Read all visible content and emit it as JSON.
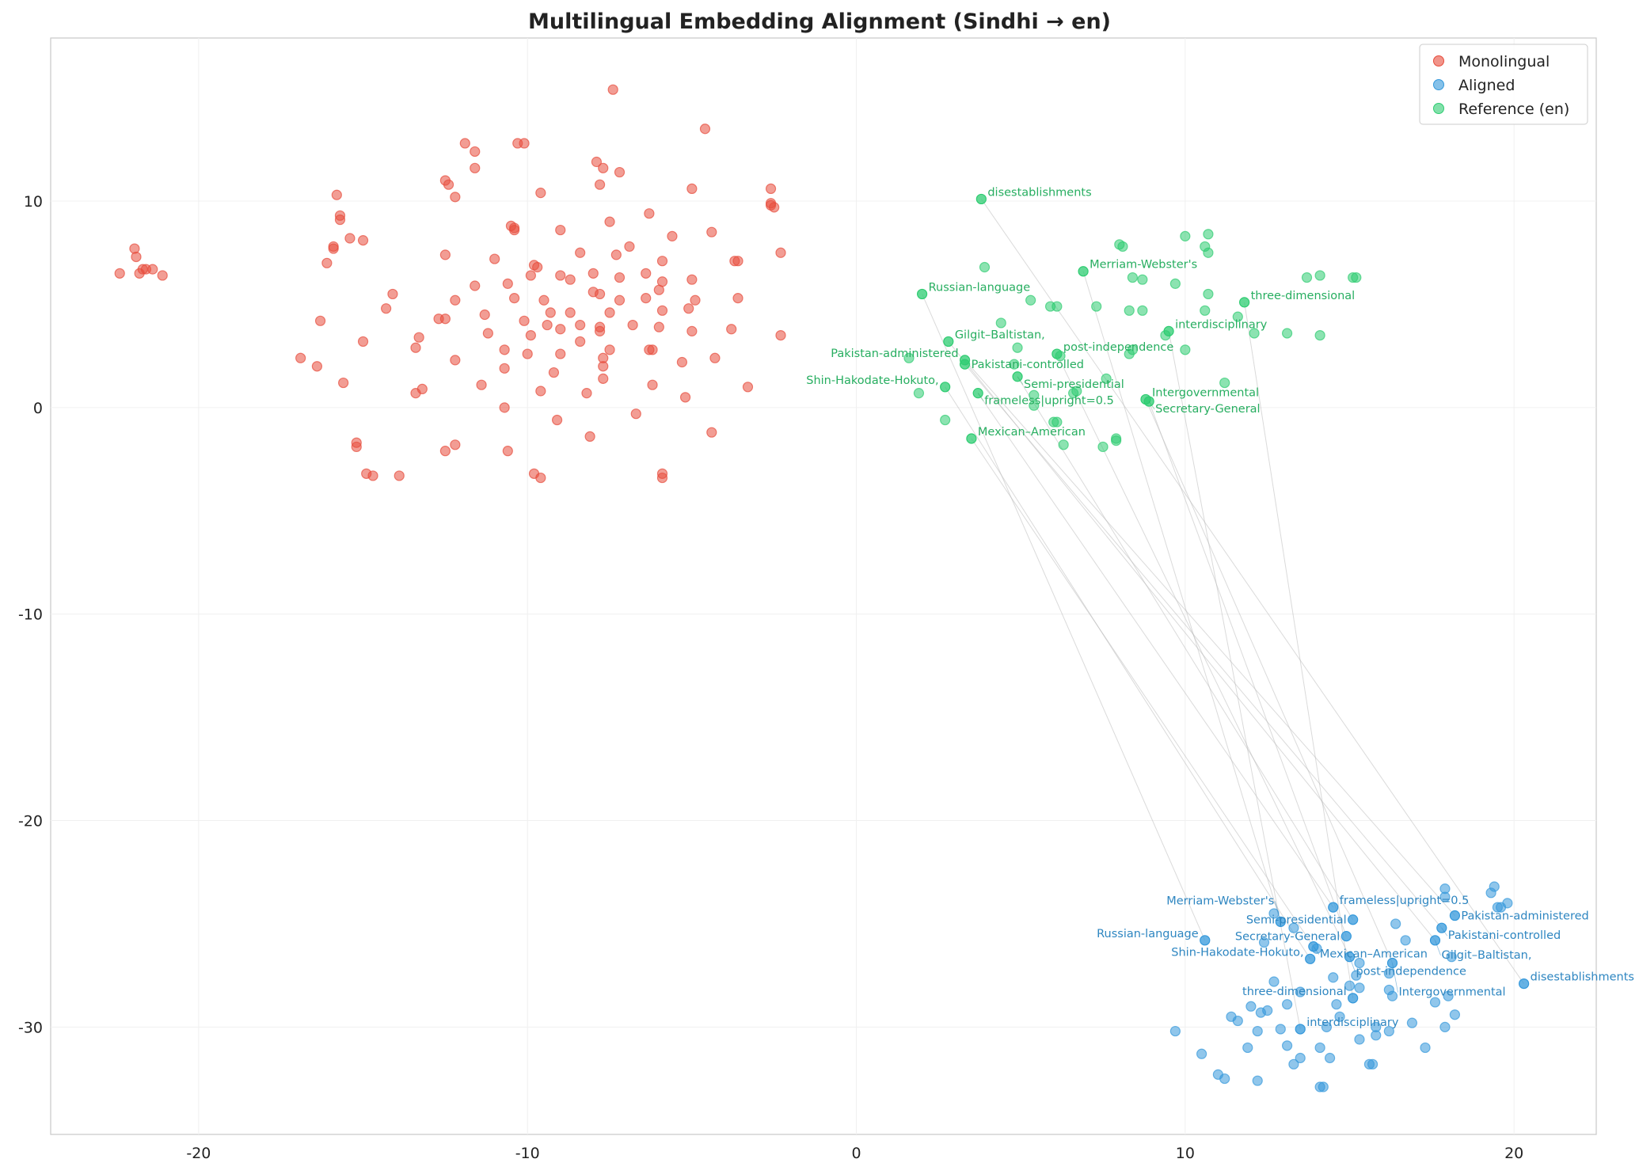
{
  "chart_data": {
    "type": "scatter",
    "title": "Multilingual Embedding Alignment (Sindhi → en)",
    "xlabel": "",
    "ylabel": "",
    "xlim": [
      -24.5,
      22.5
    ],
    "ylim": [
      -35.2,
      17.9
    ],
    "xticks": [
      -20,
      -10,
      0,
      10,
      20
    ],
    "yticks": [
      10,
      0,
      -10,
      -20,
      -30
    ],
    "grid": true,
    "legend_position": "top-right",
    "colors": {
      "Monolingual": "#e74c3c",
      "Aligned": "#3498db",
      "Reference (en)": "#2ecc71",
      "ref_label": "#27ae60",
      "aligned_label": "#2e86c1",
      "line": "#bbbbbb"
    },
    "series": [
      {
        "name": "Monolingual",
        "points": [
          [
            -22.4,
            6.5
          ],
          [
            -21.95,
            7.7
          ],
          [
            -21.9,
            7.3
          ],
          [
            -21.8,
            6.5
          ],
          [
            -21.7,
            6.7
          ],
          [
            -21.6,
            6.7
          ],
          [
            -21.4,
            6.7
          ],
          [
            -21.1,
            6.4
          ],
          [
            -16.9,
            2.4
          ],
          [
            -16.4,
            2.0
          ],
          [
            -16.3,
            4.2
          ],
          [
            -16.1,
            7.0
          ],
          [
            -15.9,
            7.7
          ],
          [
            -15.9,
            7.8
          ],
          [
            -15.8,
            10.3
          ],
          [
            -15.7,
            9.3
          ],
          [
            -15.7,
            9.1
          ],
          [
            -15.6,
            1.2
          ],
          [
            -15.4,
            8.2
          ],
          [
            -15.2,
            -1.7
          ],
          [
            -15.2,
            -1.9
          ],
          [
            -15.0,
            8.1
          ],
          [
            -15.0,
            3.2
          ],
          [
            -14.9,
            -3.2
          ],
          [
            -14.7,
            -3.3
          ],
          [
            -14.3,
            4.8
          ],
          [
            -14.1,
            5.5
          ],
          [
            -13.9,
            -3.3
          ],
          [
            -13.4,
            0.7
          ],
          [
            -13.4,
            2.9
          ],
          [
            -13.3,
            3.4
          ],
          [
            -13.2,
            0.9
          ],
          [
            -12.7,
            4.3
          ],
          [
            -12.5,
            7.4
          ],
          [
            -12.5,
            4.3
          ],
          [
            -12.5,
            11.0
          ],
          [
            -12.4,
            10.8
          ],
          [
            -12.2,
            10.2
          ],
          [
            -12.2,
            5.2
          ],
          [
            -12.2,
            2.3
          ],
          [
            -12.5,
            -2.1
          ],
          [
            -12.2,
            -1.8
          ],
          [
            -11.9,
            12.8
          ],
          [
            -11.6,
            12.4
          ],
          [
            -11.6,
            11.6
          ],
          [
            -11.6,
            5.9
          ],
          [
            -11.4,
            1.1
          ],
          [
            -11.3,
            4.5
          ],
          [
            -11.2,
            3.6
          ],
          [
            -11.0,
            7.2
          ],
          [
            -10.7,
            2.8
          ],
          [
            -10.7,
            1.9
          ],
          [
            -10.7,
            0.0
          ],
          [
            -10.6,
            -2.1
          ],
          [
            -10.6,
            6.0
          ],
          [
            -10.5,
            8.8
          ],
          [
            -10.4,
            8.6
          ],
          [
            -10.4,
            8.7
          ],
          [
            -10.4,
            5.3
          ],
          [
            -10.3,
            12.8
          ],
          [
            -10.1,
            12.8
          ],
          [
            -10.1,
            4.2
          ],
          [
            -10.0,
            2.6
          ],
          [
            -9.9,
            3.5
          ],
          [
            -9.9,
            6.4
          ],
          [
            -9.8,
            6.9
          ],
          [
            -9.7,
            6.8
          ],
          [
            -9.8,
            -3.2
          ],
          [
            -9.6,
            -3.4
          ],
          [
            -9.6,
            10.4
          ],
          [
            -9.6,
            0.8
          ],
          [
            -9.5,
            5.2
          ],
          [
            -9.4,
            4.0
          ],
          [
            -9.3,
            4.6
          ],
          [
            -9.2,
            1.7
          ],
          [
            -9.1,
            -0.6
          ],
          [
            -9.0,
            3.8
          ],
          [
            -9.0,
            6.4
          ],
          [
            -9.0,
            2.6
          ],
          [
            -9.0,
            8.6
          ],
          [
            -8.7,
            6.2
          ],
          [
            -8.7,
            4.6
          ],
          [
            -8.4,
            7.5
          ],
          [
            -8.4,
            4.0
          ],
          [
            -8.4,
            3.2
          ],
          [
            -8.2,
            0.7
          ],
          [
            -8.1,
            -1.4
          ],
          [
            -8.0,
            5.6
          ],
          [
            -8.0,
            6.5
          ],
          [
            -7.9,
            11.9
          ],
          [
            -7.8,
            3.9
          ],
          [
            -7.8,
            3.7
          ],
          [
            -7.8,
            10.8
          ],
          [
            -7.8,
            5.5
          ],
          [
            -7.7,
            2.4
          ],
          [
            -7.7,
            2.0
          ],
          [
            -7.7,
            1.4
          ],
          [
            -7.7,
            11.6
          ],
          [
            -7.5,
            2.8
          ],
          [
            -7.5,
            4.6
          ],
          [
            -7.5,
            9.0
          ],
          [
            -7.4,
            15.4
          ],
          [
            -7.3,
            7.4
          ],
          [
            -7.2,
            11.4
          ],
          [
            -7.2,
            6.3
          ],
          [
            -7.2,
            5.2
          ],
          [
            -6.9,
            7.8
          ],
          [
            -6.8,
            4.0
          ],
          [
            -6.7,
            -0.3
          ],
          [
            -6.4,
            6.5
          ],
          [
            -6.4,
            5.3
          ],
          [
            -6.3,
            9.4
          ],
          [
            -6.2,
            1.1
          ],
          [
            -6.3,
            2.8
          ],
          [
            -6.2,
            2.8
          ],
          [
            -6.0,
            5.7
          ],
          [
            -6.0,
            3.9
          ],
          [
            -5.9,
            6.1
          ],
          [
            -5.9,
            4.7
          ],
          [
            -5.9,
            7.1
          ],
          [
            -5.9,
            -3.2
          ],
          [
            -5.9,
            -3.4
          ],
          [
            -5.6,
            8.3
          ],
          [
            -5.3,
            2.2
          ],
          [
            -5.2,
            0.5
          ],
          [
            -5.1,
            4.8
          ],
          [
            -5.0,
            3.7
          ],
          [
            -5.0,
            10.6
          ],
          [
            -5.0,
            6.2
          ],
          [
            -4.9,
            5.2
          ],
          [
            -4.6,
            13.5
          ],
          [
            -4.4,
            8.5
          ],
          [
            -4.4,
            -1.2
          ],
          [
            -4.3,
            2.4
          ],
          [
            -3.8,
            3.8
          ],
          [
            -3.7,
            7.1
          ],
          [
            -3.6,
            7.1
          ],
          [
            -3.6,
            5.3
          ],
          [
            -3.3,
            1.0
          ],
          [
            -2.6,
            10.6
          ],
          [
            -2.6,
            9.9
          ],
          [
            -2.6,
            9.8
          ],
          [
            -2.5,
            9.7
          ],
          [
            -2.3,
            7.5
          ],
          [
            -2.3,
            3.5
          ]
        ]
      },
      {
        "name": "Aligned",
        "points": [
          [
            17.9,
            -23.3
          ],
          [
            17.9,
            -23.7
          ],
          [
            19.3,
            -23.5
          ],
          [
            19.4,
            -23.2
          ],
          [
            19.6,
            -24.2
          ],
          [
            19.5,
            -24.2
          ],
          [
            19.8,
            -24.0
          ],
          [
            12.7,
            -24.5
          ],
          [
            13.3,
            -25.2
          ],
          [
            12.4,
            -25.9
          ],
          [
            12.7,
            -27.8
          ],
          [
            13.5,
            -28.3
          ],
          [
            13.1,
            -28.9
          ],
          [
            12.0,
            -29.0
          ],
          [
            12.3,
            -29.3
          ],
          [
            12.5,
            -29.2
          ],
          [
            11.4,
            -29.5
          ],
          [
            11.6,
            -29.7
          ],
          [
            11.9,
            -31.0
          ],
          [
            12.9,
            -30.1
          ],
          [
            13.1,
            -30.9
          ],
          [
            13.5,
            -31.5
          ],
          [
            13.3,
            -31.8
          ],
          [
            14.1,
            -31.0
          ],
          [
            14.4,
            -31.5
          ],
          [
            14.3,
            -30.0
          ],
          [
            14.7,
            -29.5
          ],
          [
            14.6,
            -28.9
          ],
          [
            15.0,
            -28.0
          ],
          [
            15.3,
            -28.1
          ],
          [
            14.5,
            -27.6
          ],
          [
            15.2,
            -27.5
          ],
          [
            16.2,
            -28.2
          ],
          [
            16.3,
            -28.5
          ],
          [
            16.2,
            -27.4
          ],
          [
            15.8,
            -30.0
          ],
          [
            15.8,
            -30.4
          ],
          [
            15.3,
            -30.6
          ],
          [
            15.7,
            -31.8
          ],
          [
            16.9,
            -29.8
          ],
          [
            17.3,
            -31.0
          ],
          [
            17.6,
            -28.8
          ],
          [
            18.0,
            -28.5
          ],
          [
            18.2,
            -29.4
          ],
          [
            17.9,
            -30.0
          ],
          [
            18.1,
            -26.6
          ],
          [
            16.7,
            -25.8
          ],
          [
            16.4,
            -25.0
          ],
          [
            9.7,
            -30.2
          ],
          [
            10.5,
            -31.3
          ],
          [
            11.0,
            -32.3
          ],
          [
            11.2,
            -32.5
          ],
          [
            12.2,
            -32.6
          ],
          [
            14.1,
            -32.9
          ],
          [
            14.2,
            -32.9
          ],
          [
            15.6,
            -31.8
          ],
          [
            16.2,
            -30.2
          ],
          [
            12.2,
            -30.2
          ],
          [
            14.0,
            -26.2
          ],
          [
            15.3,
            -26.9
          ]
        ]
      },
      {
        "name": "Reference (en)",
        "points": [
          [
            1.6,
            2.4
          ],
          [
            1.9,
            0.7
          ],
          [
            2.7,
            -0.6
          ],
          [
            3.9,
            6.8
          ],
          [
            4.4,
            4.1
          ],
          [
            4.9,
            2.9
          ],
          [
            4.8,
            2.1
          ],
          [
            5.3,
            5.2
          ],
          [
            5.4,
            0.6
          ],
          [
            5.4,
            0.1
          ],
          [
            5.9,
            4.9
          ],
          [
            6.1,
            4.9
          ],
          [
            6.0,
            -0.7
          ],
          [
            6.1,
            -0.7
          ],
          [
            6.3,
            -1.8
          ],
          [
            6.2,
            2.5
          ],
          [
            6.6,
            0.7
          ],
          [
            6.7,
            0.8
          ],
          [
            7.3,
            4.9
          ],
          [
            7.5,
            -1.9
          ],
          [
            7.6,
            1.4
          ],
          [
            7.9,
            -1.6
          ],
          [
            7.9,
            -1.5
          ],
          [
            8.0,
            7.9
          ],
          [
            8.1,
            7.8
          ],
          [
            8.3,
            4.7
          ],
          [
            8.3,
            2.6
          ],
          [
            8.4,
            2.8
          ],
          [
            8.4,
            6.3
          ],
          [
            8.7,
            4.7
          ],
          [
            8.7,
            6.2
          ],
          [
            9.4,
            3.5
          ],
          [
            9.7,
            6.0
          ],
          [
            10.0,
            8.3
          ],
          [
            10.0,
            2.8
          ],
          [
            10.6,
            4.7
          ],
          [
            10.6,
            7.8
          ],
          [
            10.7,
            8.4
          ],
          [
            10.7,
            7.5
          ],
          [
            10.7,
            5.5
          ],
          [
            11.2,
            1.2
          ],
          [
            11.6,
            4.4
          ],
          [
            12.1,
            3.6
          ],
          [
            13.1,
            3.6
          ],
          [
            13.7,
            6.3
          ],
          [
            14.1,
            6.4
          ],
          [
            14.1,
            3.5
          ],
          [
            15.1,
            6.3
          ],
          [
            15.2,
            6.3
          ]
        ]
      }
    ],
    "pairs": [
      {
        "word": "disestablishments",
        "ref": [
          3.8,
          10.1
        ],
        "aligned": [
          20.3,
          -27.9
        ]
      },
      {
        "word": "Russian-language",
        "ref": [
          2.0,
          5.5
        ],
        "aligned": [
          10.6,
          -25.8
        ]
      },
      {
        "word": "Merriam-Webster's",
        "ref": [
          6.9,
          6.6
        ],
        "aligned": [
          12.9,
          -24.9
        ]
      },
      {
        "word": "three-dimensional",
        "ref": [
          11.8,
          5.1
        ],
        "aligned": [
          15.1,
          -28.6
        ]
      },
      {
        "word": "interdisciplinary",
        "ref": [
          9.5,
          3.7
        ],
        "aligned": [
          13.5,
          -30.1
        ]
      },
      {
        "word": "Gilgit–Baltistan,",
        "ref": [
          2.8,
          3.2
        ],
        "aligned": [
          17.6,
          -25.8
        ]
      },
      {
        "word": "Pakistan-administered",
        "ref": [
          3.3,
          2.3
        ],
        "aligned": [
          18.2,
          -24.6
        ]
      },
      {
        "word": "Pakistani-controlled",
        "ref": [
          3.3,
          2.1
        ],
        "aligned": [
          17.8,
          -25.2
        ]
      },
      {
        "word": "post-independence",
        "ref": [
          6.1,
          2.6
        ],
        "aligned": [
          15.0,
          -26.6
        ]
      },
      {
        "word": "Semi-presidential",
        "ref": [
          4.9,
          1.5
        ],
        "aligned": [
          15.1,
          -24.8
        ]
      },
      {
        "word": "Shin-Hakodate-Hokuto,",
        "ref": [
          2.7,
          1.0
        ],
        "aligned": [
          13.8,
          -26.7
        ]
      },
      {
        "word": "frameless|upright=0.5",
        "ref": [
          3.7,
          0.7
        ],
        "aligned": [
          14.5,
          -24.2
        ]
      },
      {
        "word": "Intergovernmental",
        "ref": [
          8.8,
          0.4
        ],
        "aligned": [
          16.3,
          -26.9
        ]
      },
      {
        "word": "Secretary-General",
        "ref": [
          8.9,
          0.3
        ],
        "aligned": [
          14.9,
          -25.6
        ]
      },
      {
        "word": "Mexican–American",
        "ref": [
          3.5,
          -1.5
        ],
        "aligned": [
          13.9,
          -26.1
        ]
      }
    ],
    "legend": [
      "Monolingual",
      "Aligned",
      "Reference (en)"
    ]
  }
}
